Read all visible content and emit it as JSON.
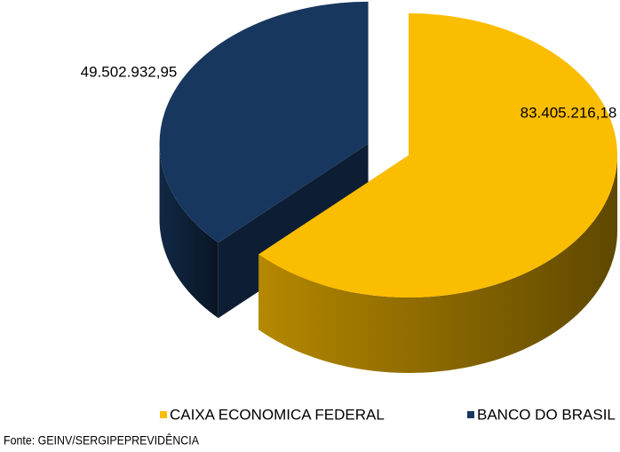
{
  "chart_data": {
    "type": "pie",
    "categories": [
      "CAIXA ECONOMICA FEDERAL",
      "BANCO DO BRASIL"
    ],
    "values": [
      83405216.18,
      49502932.95
    ],
    "value_labels": [
      "83.405.216,18",
      "49.502.932,95"
    ],
    "colors": [
      "#fbbd00",
      "#17375e"
    ],
    "exploded": [
      false,
      true
    ],
    "legend": "bottom",
    "source": "Fonte: GEINV/SERGIPEPREVIDÊNCIA"
  }
}
